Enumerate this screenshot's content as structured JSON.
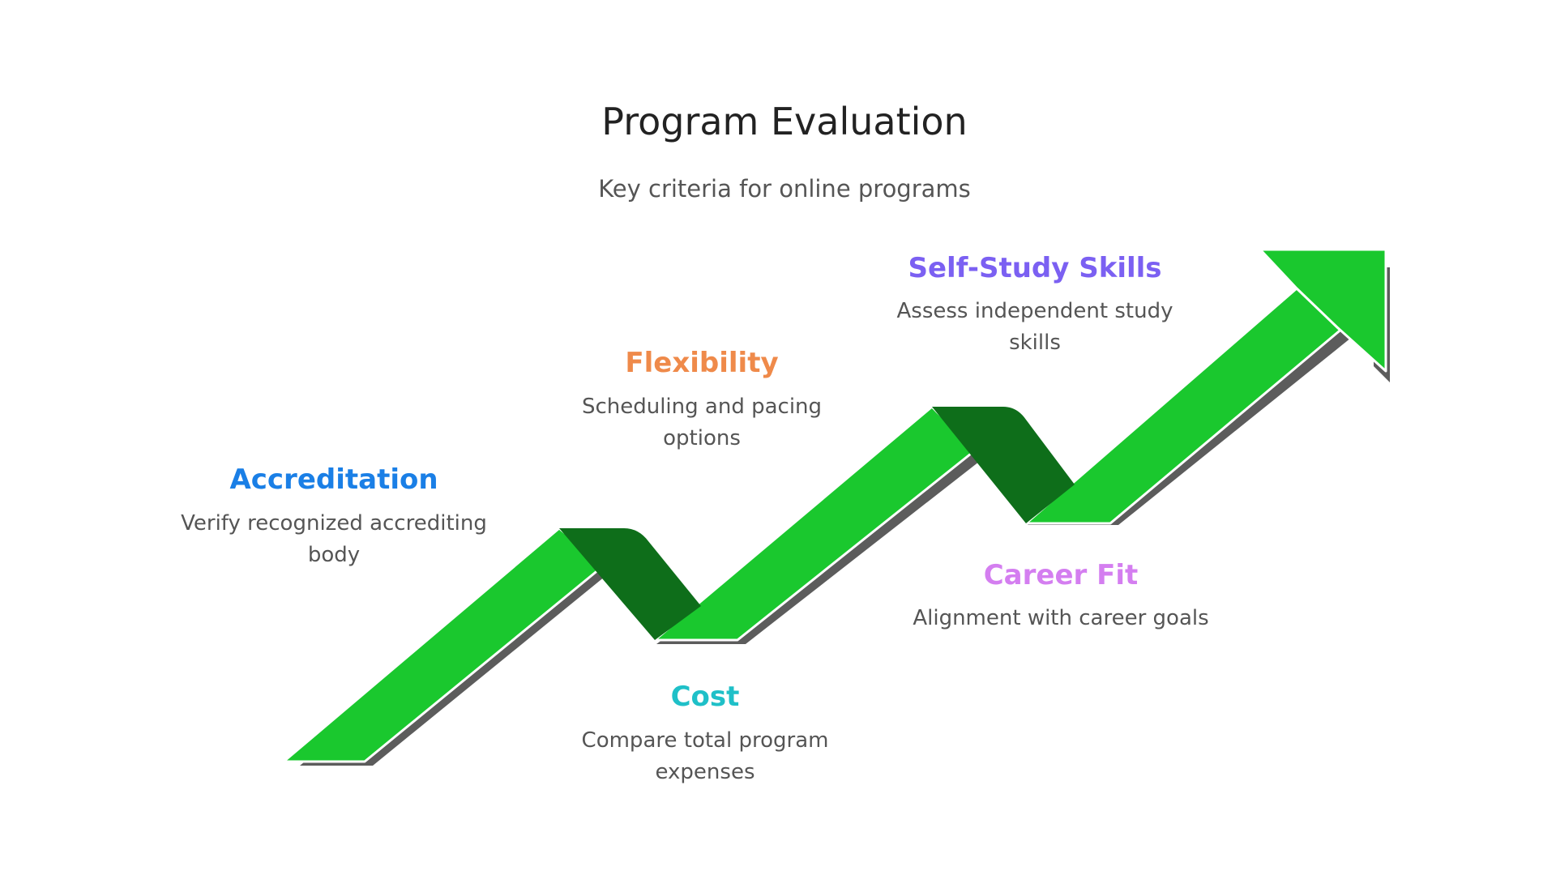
{
  "title": "Program Evaluation",
  "subtitle": "Key criteria for online programs",
  "steps": [
    {
      "label": "Accreditation",
      "color": "#1a7fe6",
      "desc_lines": [
        "Verify recognized accrediting",
        "body"
      ]
    },
    {
      "label": "Cost",
      "color": "#1fc0c8",
      "desc_lines": [
        "Compare total program",
        "expenses"
      ]
    },
    {
      "label": "Flexibility",
      "color": "#ef8a4a",
      "desc_lines": [
        "Scheduling and pacing",
        "options"
      ]
    },
    {
      "label": "Career Fit",
      "color": "#d47ef0",
      "desc_lines": [
        "Alignment with career goals"
      ]
    },
    {
      "label": "Self-Study Skills",
      "color": "#7b60f2",
      "desc_lines": [
        "Assess independent study",
        "skills"
      ]
    }
  ],
  "arrow": {
    "color": "#1ac82e",
    "fold_color": "#0e6e1a",
    "shadow_color": "#5c5c5c"
  }
}
